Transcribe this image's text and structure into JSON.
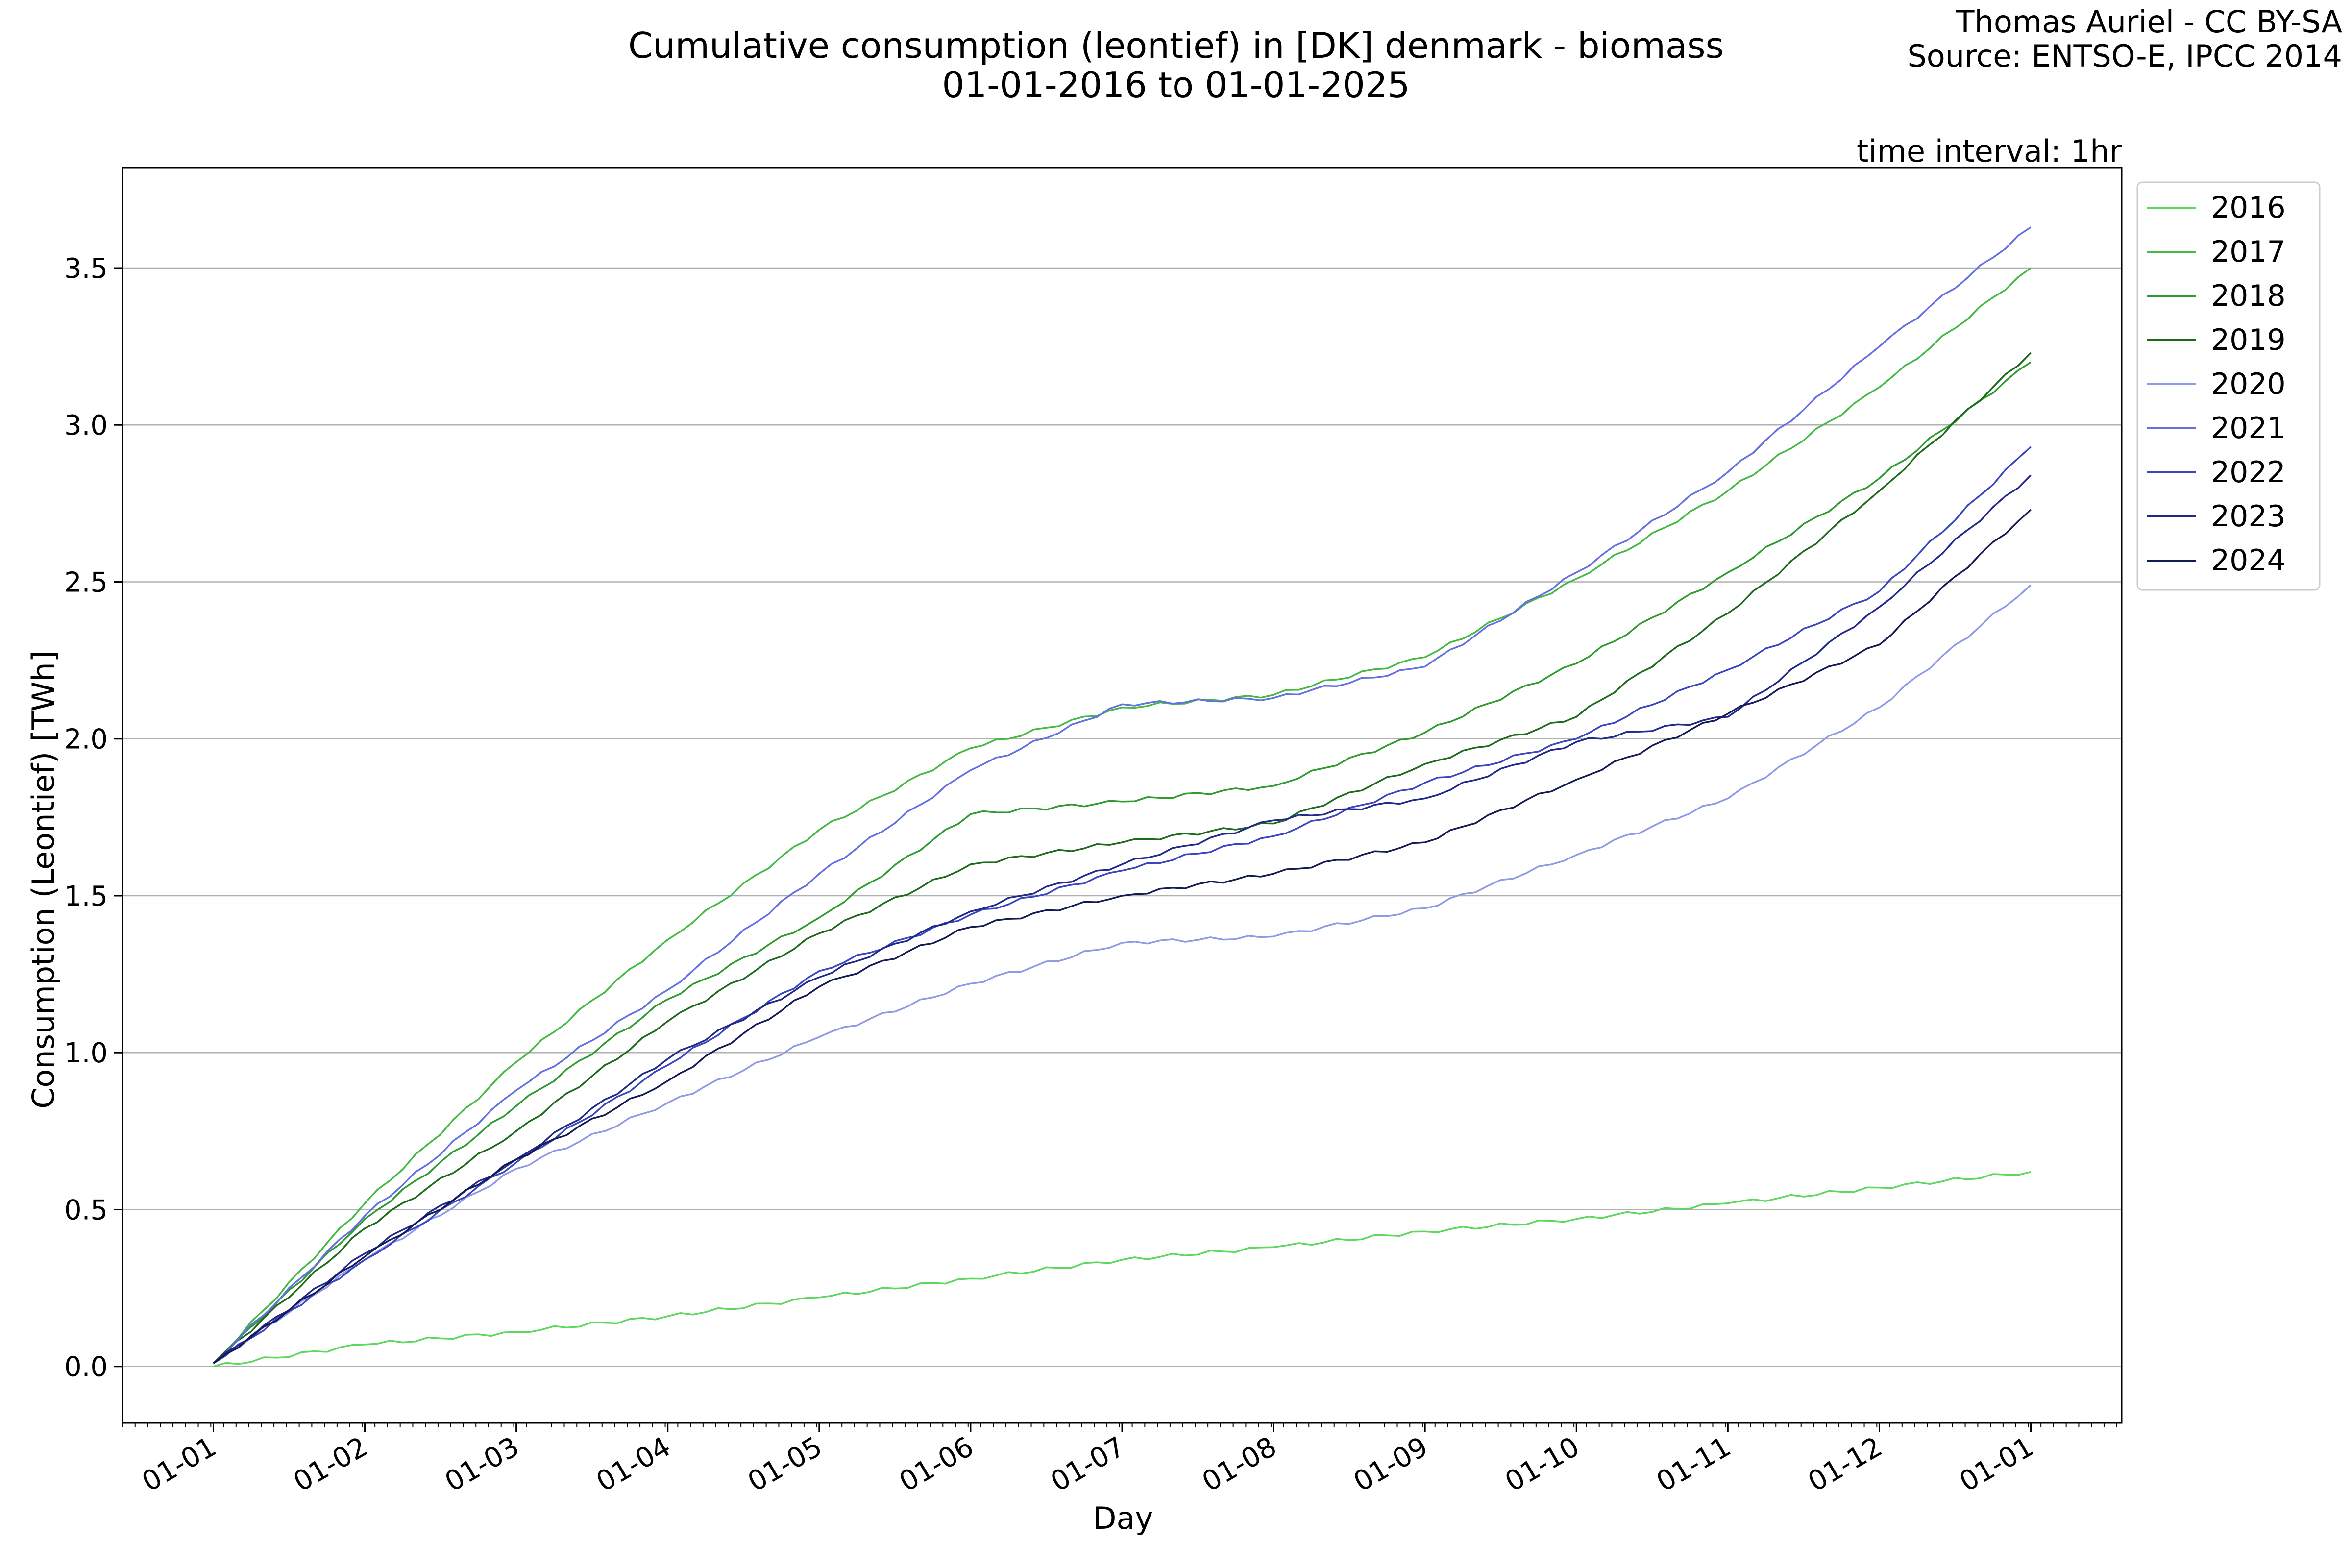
{
  "title_line1": "Cumulative consumption (leontief) in [DK] denmark - biomass",
  "title_line2": "01-01-2016 to 01-01-2025",
  "credit_line1": "Thomas Auriel - CC BY-SA",
  "credit_line2": "Source: ENTSO-E, IPCC 2014",
  "interval_note": "time interval: 1hr",
  "chart_data": {
    "type": "line",
    "title": "Cumulative consumption (leontief) in [DK] denmark - biomass",
    "subtitle": "01-01-2016 to 01-01-2025",
    "xlabel": "Day",
    "ylabel": "Consumption (Leontief) [TWh]",
    "x_tick_labels": [
      "01-01",
      "01-02",
      "01-03",
      "01-04",
      "01-05",
      "01-06",
      "01-07",
      "01-08",
      "01-09",
      "01-10",
      "01-11",
      "01-12",
      "01-01"
    ],
    "x_tick_values": [
      0,
      1,
      2,
      3,
      4,
      5,
      6,
      7,
      8,
      9,
      10,
      11,
      12
    ],
    "xlim": [
      -0.6,
      12.6
    ],
    "y_ticks": [
      0.0,
      0.5,
      1.0,
      1.5,
      2.0,
      2.5,
      3.0,
      3.5
    ],
    "y_tick_labels": [
      "0.0",
      "0.5",
      "1.0",
      "1.5",
      "2.0",
      "2.5",
      "3.0",
      "3.5"
    ],
    "ylim": [
      -0.18,
      3.82
    ],
    "grid": "horizontal",
    "legend_position": "outside-right-top",
    "x_unit": "month offset from 01-01",
    "series": [
      {
        "name": "2016",
        "color": "#5dd75d",
        "x": [
          0,
          1,
          2,
          3,
          4,
          5,
          6,
          7,
          8,
          9,
          10,
          11,
          12
        ],
        "values": [
          0.0,
          0.07,
          0.11,
          0.16,
          0.22,
          0.28,
          0.34,
          0.38,
          0.43,
          0.47,
          0.52,
          0.57,
          0.62
        ]
      },
      {
        "name": "2017",
        "color": "#45b845",
        "x": [
          0,
          1,
          2,
          3,
          4,
          5,
          6,
          7,
          8,
          9,
          10,
          11,
          12
        ],
        "values": [
          0.01,
          0.52,
          0.97,
          1.36,
          1.71,
          1.97,
          2.1,
          2.14,
          2.26,
          2.51,
          2.79,
          3.12,
          3.5
        ]
      },
      {
        "name": "2018",
        "color": "#2f9a2f",
        "x": [
          0,
          1,
          2,
          3,
          4,
          5,
          6,
          7,
          8,
          9,
          10,
          11,
          12
        ],
        "values": [
          0.01,
          0.47,
          0.83,
          1.17,
          1.43,
          1.76,
          1.8,
          1.85,
          2.02,
          2.24,
          2.53,
          2.83,
          3.2
        ]
      },
      {
        "name": "2019",
        "color": "#1d6a1d",
        "x": [
          0,
          1,
          2,
          3,
          4,
          5,
          6,
          7,
          8,
          9,
          10,
          11,
          12
        ],
        "values": [
          0.01,
          0.44,
          0.75,
          1.1,
          1.38,
          1.6,
          1.67,
          1.73,
          1.92,
          2.07,
          2.4,
          2.79,
          3.23
        ]
      },
      {
        "name": "2020",
        "color": "#8f9ae6",
        "x": [
          0,
          1,
          2,
          3,
          4,
          5,
          6,
          7,
          8,
          9,
          10,
          11,
          12
        ],
        "values": [
          0.01,
          0.34,
          0.63,
          0.84,
          1.05,
          1.22,
          1.35,
          1.37,
          1.46,
          1.63,
          1.81,
          2.1,
          2.49
        ]
      },
      {
        "name": "2021",
        "color": "#6470e0",
        "x": [
          0,
          1,
          2,
          3,
          4,
          5,
          6,
          7,
          8,
          9,
          10,
          11,
          12
        ],
        "values": [
          0.01,
          0.48,
          0.88,
          1.2,
          1.57,
          1.9,
          2.11,
          2.13,
          2.23,
          2.53,
          2.85,
          3.25,
          3.63
        ]
      },
      {
        "name": "2022",
        "color": "#3a45c0",
        "x": [
          0,
          1,
          2,
          3,
          4,
          5,
          6,
          7,
          8,
          9,
          10,
          11,
          12
        ],
        "values": [
          0.01,
          0.34,
          0.65,
          0.96,
          1.26,
          1.44,
          1.58,
          1.69,
          1.86,
          2.0,
          2.22,
          2.47,
          2.93
        ]
      },
      {
        "name": "2023",
        "color": "#20298a",
        "x": [
          0,
          1,
          2,
          3,
          4,
          5,
          6,
          7,
          8,
          9,
          10,
          11,
          12
        ],
        "values": [
          0.01,
          0.36,
          0.66,
          0.98,
          1.24,
          1.45,
          1.6,
          1.74,
          1.81,
          1.99,
          2.07,
          2.42,
          2.84
        ]
      },
      {
        "name": "2024",
        "color": "#141a55",
        "x": [
          0,
          1,
          2,
          3,
          4,
          5,
          6,
          7,
          8,
          9,
          10,
          11,
          12
        ],
        "values": [
          0.01,
          0.35,
          0.66,
          0.91,
          1.21,
          1.4,
          1.5,
          1.57,
          1.67,
          1.87,
          2.08,
          2.3,
          2.73
        ]
      }
    ]
  }
}
